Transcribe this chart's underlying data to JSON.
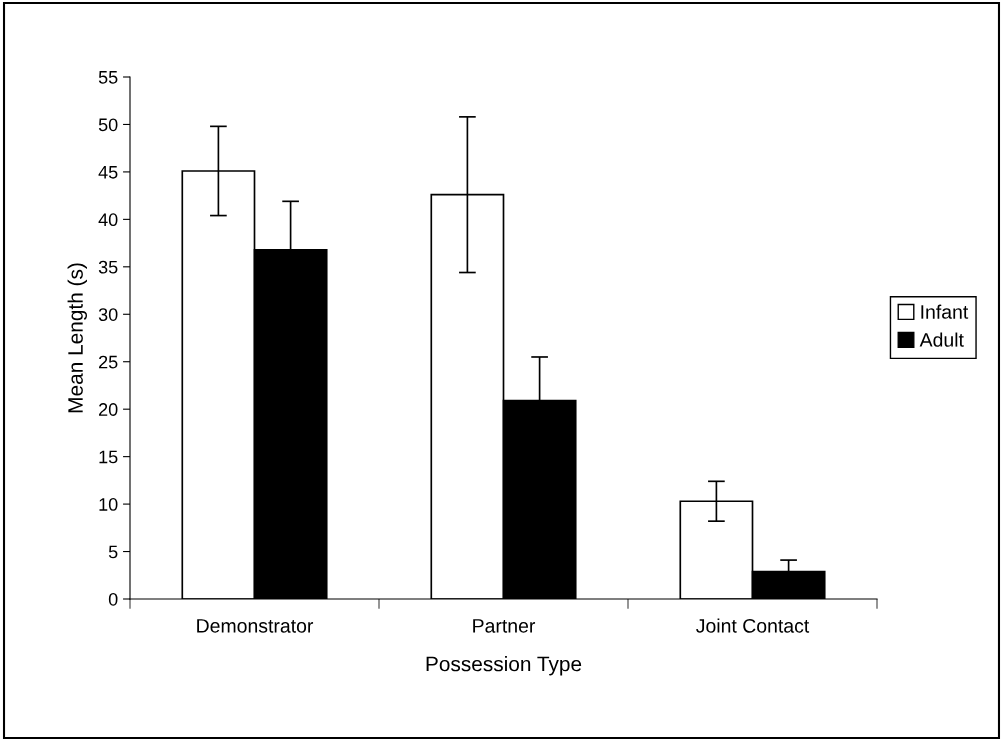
{
  "chart_data": {
    "type": "bar",
    "xlabel": "Possession Type",
    "ylabel": "Mean Length (s)",
    "categories": [
      "Demonstrator",
      "Partner",
      "Joint Contact"
    ],
    "series": [
      {
        "name": "Infant",
        "color": "#ffffff",
        "values": [
          45.1,
          42.6,
          10.3
        ],
        "errors": [
          4.7,
          8.2,
          2.1
        ]
      },
      {
        "name": "Adult",
        "color": "#000000",
        "values": [
          36.8,
          20.9,
          2.9
        ],
        "errors": [
          5.1,
          4.6,
          1.2
        ]
      }
    ],
    "ylim": [
      0,
      55
    ],
    "yticks": [
      0,
      5,
      10,
      15,
      20,
      25,
      30,
      35,
      40,
      45,
      50,
      55
    ],
    "grid": false,
    "legend": "right"
  }
}
